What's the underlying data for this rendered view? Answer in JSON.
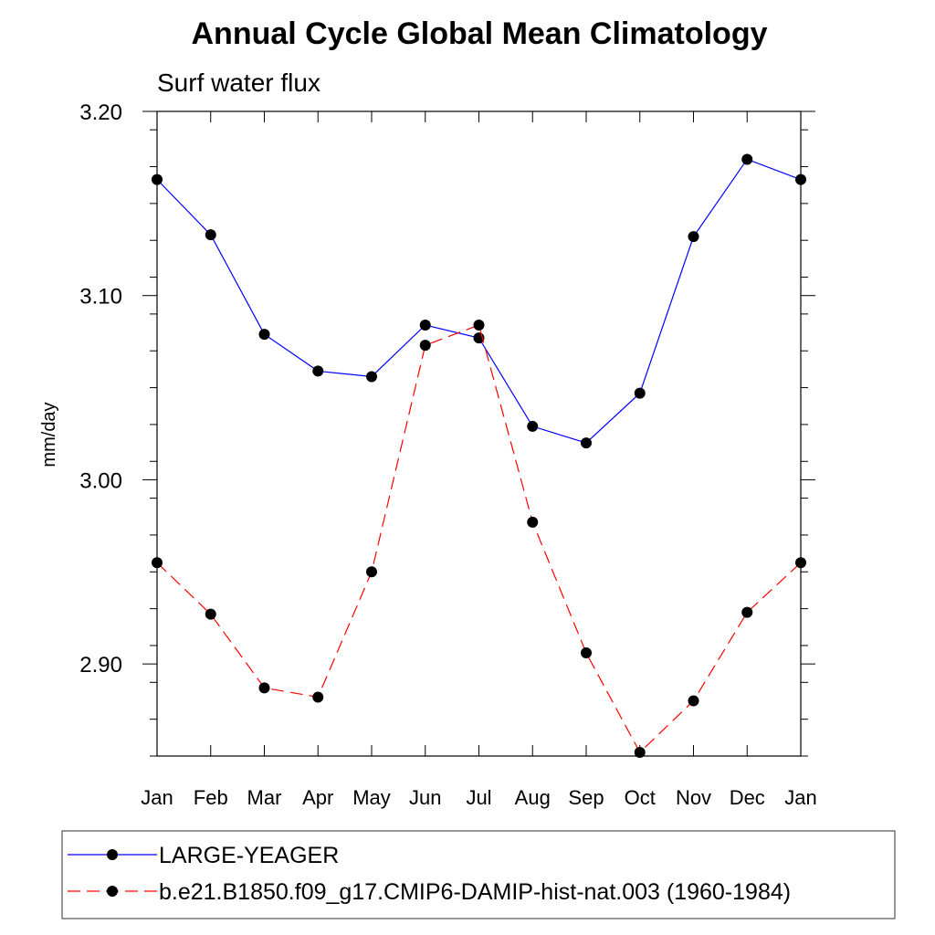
{
  "chart_data": {
    "type": "line",
    "title": "Annual Cycle Global Mean Climatology",
    "subtitle": "Surf water flux",
    "xlabel": "",
    "ylabel": "mm/day",
    "categories": [
      "Jan",
      "Feb",
      "Mar",
      "Apr",
      "May",
      "Jun",
      "Jul",
      "Aug",
      "Sep",
      "Oct",
      "Nov",
      "Dec",
      "Jan"
    ],
    "ylim": [
      2.85,
      3.2
    ],
    "yticks": [
      2.9,
      3.0,
      3.1,
      3.2
    ],
    "ytick_labels": [
      "2.90",
      "3.00",
      "3.10",
      "3.20"
    ],
    "grid": false,
    "legend_position": "bottom",
    "series": [
      {
        "name": "LARGE-YEAGER",
        "color": "#0000ff",
        "line_style": "solid",
        "marker": "filled-circle",
        "values": [
          3.163,
          3.133,
          3.079,
          3.059,
          3.056,
          3.084,
          3.077,
          3.029,
          3.02,
          3.047,
          3.132,
          3.174,
          3.163
        ]
      },
      {
        "name": "b.e21.B1850.f09_g17.CMIP6-DAMIP-hist-nat.003 (1960-1984)",
        "color": "#ff0000",
        "line_style": "dashed",
        "marker": "filled-circle",
        "values": [
          2.955,
          2.927,
          2.887,
          2.882,
          2.95,
          3.073,
          3.084,
          2.977,
          2.906,
          2.852,
          2.88,
          2.928,
          2.955
        ]
      }
    ]
  }
}
